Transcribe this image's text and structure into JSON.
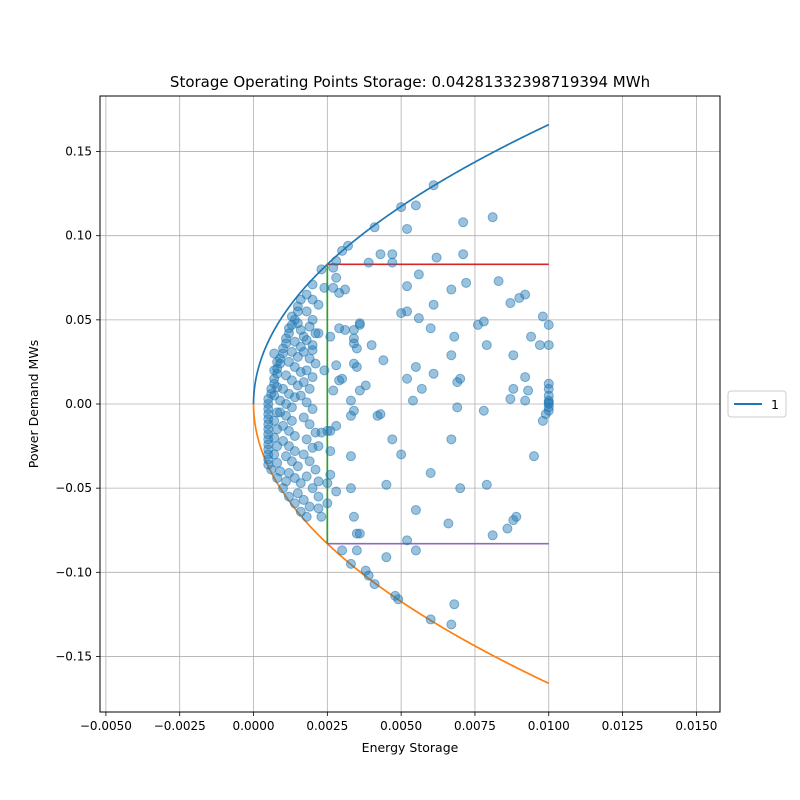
{
  "chart_data": {
    "type": "scatter",
    "title": "Storage Operating Points Storage: 0.04281332398719394 MWh",
    "xlabel": "Energy Storage",
    "ylabel": "Power Demand MWs",
    "xlim": [
      -0.0052,
      0.0158
    ],
    "ylim": [
      -0.183,
      0.183
    ],
    "xticks": [
      -0.005,
      -0.0025,
      0.0,
      0.0025,
      0.005,
      0.0075,
      0.01,
      0.0125,
      0.015
    ],
    "xtick_labels": [
      "−0.0050",
      "−0.0025",
      "0.0000",
      "0.0025",
      "0.0050",
      "0.0075",
      "0.0100",
      "0.0125",
      "0.0150"
    ],
    "yticks": [
      -0.15,
      -0.1,
      -0.05,
      0.0,
      0.05,
      0.1,
      0.15
    ],
    "ytick_labels": [
      "−0.15",
      "−0.10",
      "−0.05",
      "0.00",
      "0.05",
      "0.10",
      "0.15"
    ],
    "grid": true,
    "legend": {
      "placement": "outside-right",
      "entries": [
        {
          "name": "1",
          "color": "#1f77b4"
        }
      ]
    },
    "series": [
      {
        "kind": "curve",
        "color": "#1f77b4",
        "equation": "y = 1.66*sqrt(x)",
        "x_range": [
          0.0,
          0.01
        ]
      },
      {
        "kind": "curve",
        "color": "#ff7f0e",
        "equation": "y = -1.66*sqrt(x)",
        "x_range": [
          0.0,
          0.01
        ]
      },
      {
        "kind": "hline",
        "color": "#d62728",
        "y": 0.083,
        "x_range": [
          0.0025,
          0.01
        ]
      },
      {
        "kind": "hline",
        "color": "#9467bd",
        "y": -0.083,
        "x_range": [
          0.0025,
          0.01
        ]
      },
      {
        "kind": "vline",
        "color": "#2ca02c",
        "x": 0.0025,
        "y_range": [
          -0.083,
          0.083
        ]
      },
      {
        "kind": "scatter",
        "color": "#1f77b4",
        "alpha": 0.45,
        "points": [
          [
            0.0061,
            0.13
          ],
          [
            0.005,
            0.117
          ],
          [
            0.0055,
            0.118
          ],
          [
            0.0071,
            0.108
          ],
          [
            0.0081,
            0.111
          ],
          [
            0.0041,
            0.105
          ],
          [
            0.0052,
            0.104
          ],
          [
            0.0032,
            0.094
          ],
          [
            0.003,
            0.091
          ],
          [
            0.0043,
            0.089
          ],
          [
            0.0047,
            0.089
          ],
          [
            0.0062,
            0.087
          ],
          [
            0.0071,
            0.089
          ],
          [
            0.0028,
            0.085
          ],
          [
            0.0039,
            0.084
          ],
          [
            0.0047,
            0.084
          ],
          [
            0.0027,
            0.081
          ],
          [
            0.0023,
            0.08
          ],
          [
            0.0056,
            0.077
          ],
          [
            0.0028,
            0.075
          ],
          [
            0.0072,
            0.072
          ],
          [
            0.0083,
            0.073
          ],
          [
            0.0052,
            0.07
          ],
          [
            0.0024,
            0.069
          ],
          [
            0.0027,
            0.069
          ],
          [
            0.0031,
            0.068
          ],
          [
            0.0029,
            0.066
          ],
          [
            0.0067,
            0.068
          ],
          [
            0.009,
            0.063
          ],
          [
            0.0092,
            0.065
          ],
          [
            0.0087,
            0.06
          ],
          [
            0.0061,
            0.059
          ],
          [
            0.002,
            0.062
          ],
          [
            0.0022,
            0.059
          ],
          [
            0.0052,
            0.055
          ],
          [
            0.005,
            0.054
          ],
          [
            0.0056,
            0.051
          ],
          [
            0.0098,
            0.052
          ],
          [
            0.01,
            0.047
          ],
          [
            0.0078,
            0.049
          ],
          [
            0.0076,
            0.047
          ],
          [
            0.0036,
            0.048
          ],
          [
            0.006,
            0.045
          ],
          [
            0.0029,
            0.045
          ],
          [
            0.0031,
            0.044
          ],
          [
            0.0034,
            0.044
          ],
          [
            0.0036,
            0.047
          ],
          [
            0.0022,
            0.042
          ],
          [
            0.0026,
            0.04
          ],
          [
            0.0068,
            0.04
          ],
          [
            0.0094,
            0.04
          ],
          [
            0.0034,
            0.039
          ],
          [
            0.0034,
            0.036
          ],
          [
            0.0035,
            0.033
          ],
          [
            0.004,
            0.035
          ],
          [
            0.0079,
            0.035
          ],
          [
            0.0097,
            0.035
          ],
          [
            0.01,
            0.035
          ],
          [
            0.002,
            0.032
          ],
          [
            0.0067,
            0.029
          ],
          [
            0.0088,
            0.029
          ],
          [
            0.0044,
            0.026
          ],
          [
            0.0034,
            0.024
          ],
          [
            0.0028,
            0.023
          ],
          [
            0.0035,
            0.022
          ],
          [
            0.0024,
            0.02
          ],
          [
            0.0055,
            0.022
          ],
          [
            0.0061,
            0.018
          ],
          [
            0.0052,
            0.015
          ],
          [
            0.007,
            0.015
          ],
          [
            0.0092,
            0.016
          ],
          [
            0.0029,
            0.014
          ],
          [
            0.003,
            0.015
          ],
          [
            0.0069,
            0.013
          ],
          [
            0.0038,
            0.011
          ],
          [
            0.0057,
            0.009
          ],
          [
            0.0088,
            0.009
          ],
          [
            0.0093,
            0.008
          ],
          [
            0.01,
            0.012
          ],
          [
            0.01,
            0.009
          ],
          [
            0.0036,
            0.008
          ],
          [
            0.0027,
            0.008
          ],
          [
            0.0087,
            0.003
          ],
          [
            0.0092,
            0.002
          ],
          [
            0.0033,
            0.002
          ],
          [
            0.01,
            0.005
          ],
          [
            0.01,
            0.002
          ],
          [
            0.01,
            0.001
          ],
          [
            0.01,
            0.0
          ],
          [
            0.01,
            -0.002
          ],
          [
            0.01,
            -0.004
          ],
          [
            0.0099,
            -0.006
          ],
          [
            0.0054,
            0.002
          ],
          [
            0.0034,
            -0.004
          ],
          [
            0.0033,
            -0.007
          ],
          [
            0.0043,
            -0.006
          ],
          [
            0.0042,
            -0.007
          ],
          [
            0.0069,
            -0.002
          ],
          [
            0.0078,
            -0.004
          ],
          [
            0.0098,
            -0.01
          ],
          [
            0.0028,
            -0.013
          ],
          [
            0.0025,
            -0.016
          ],
          [
            0.0026,
            -0.016
          ],
          [
            0.0023,
            -0.017
          ],
          [
            0.0047,
            -0.021
          ],
          [
            0.0067,
            -0.021
          ],
          [
            0.0022,
            -0.025
          ],
          [
            0.0026,
            -0.028
          ],
          [
            0.005,
            -0.03
          ],
          [
            0.0033,
            -0.031
          ],
          [
            0.0095,
            -0.031
          ],
          [
            0.006,
            -0.041
          ],
          [
            0.0026,
            -0.042
          ],
          [
            0.0022,
            -0.046
          ],
          [
            0.0025,
            -0.047
          ],
          [
            0.0045,
            -0.048
          ],
          [
            0.0079,
            -0.048
          ],
          [
            0.0028,
            -0.052
          ],
          [
            0.0033,
            -0.05
          ],
          [
            0.007,
            -0.05
          ],
          [
            0.0022,
            -0.055
          ],
          [
            0.0025,
            -0.059
          ],
          [
            0.0055,
            -0.063
          ],
          [
            0.0089,
            -0.067
          ],
          [
            0.0088,
            -0.069
          ],
          [
            0.0034,
            -0.067
          ],
          [
            0.0023,
            -0.067
          ],
          [
            0.0066,
            -0.071
          ],
          [
            0.0086,
            -0.074
          ],
          [
            0.0081,
            -0.078
          ],
          [
            0.0035,
            -0.077
          ],
          [
            0.0036,
            -0.077
          ],
          [
            0.0052,
            -0.081
          ],
          [
            0.003,
            -0.087
          ],
          [
            0.0035,
            -0.087
          ],
          [
            0.0055,
            -0.087
          ],
          [
            0.0045,
            -0.091
          ],
          [
            0.0033,
            -0.095
          ],
          [
            0.0038,
            -0.099
          ],
          [
            0.0039,
            -0.102
          ],
          [
            0.0041,
            -0.107
          ],
          [
            0.0048,
            -0.114
          ],
          [
            0.0049,
            -0.116
          ],
          [
            0.0068,
            -0.119
          ],
          [
            0.006,
            -0.128
          ],
          [
            0.0067,
            -0.131
          ],
          [
            0.002,
            0.071
          ],
          [
            0.0018,
            0.065
          ],
          [
            0.0016,
            0.062
          ],
          [
            0.0015,
            0.058
          ],
          [
            0.0015,
            0.055
          ],
          [
            0.0014,
            0.05
          ],
          [
            0.0013,
            0.047
          ],
          [
            0.0012,
            0.045
          ],
          [
            0.0012,
            0.042
          ],
          [
            0.0011,
            0.039
          ],
          [
            0.0011,
            0.036
          ],
          [
            0.001,
            0.033
          ],
          [
            0.001,
            0.03
          ],
          [
            0.0009,
            0.027
          ],
          [
            0.0009,
            0.024
          ],
          [
            0.0008,
            0.021
          ],
          [
            0.0008,
            0.018
          ],
          [
            0.0007,
            0.015
          ],
          [
            0.0007,
            0.012
          ],
          [
            0.0006,
            0.009
          ],
          [
            0.0006,
            0.006
          ],
          [
            0.0005,
            0.003
          ],
          [
            0.0005,
            0.0
          ],
          [
            0.0005,
            -0.003
          ],
          [
            0.0005,
            -0.006
          ],
          [
            0.0005,
            -0.009
          ],
          [
            0.0005,
            -0.012
          ],
          [
            0.0005,
            -0.015
          ],
          [
            0.0005,
            -0.018
          ],
          [
            0.0005,
            -0.021
          ],
          [
            0.0005,
            -0.024
          ],
          [
            0.0005,
            -0.027
          ],
          [
            0.0005,
            -0.03
          ],
          [
            0.0005,
            -0.033
          ],
          [
            0.0005,
            -0.036
          ],
          [
            0.0006,
            -0.039
          ],
          [
            0.0008,
            -0.044
          ],
          [
            0.001,
            -0.05
          ],
          [
            0.0012,
            -0.055
          ],
          [
            0.0014,
            -0.059
          ],
          [
            0.0016,
            -0.064
          ],
          [
            0.0018,
            -0.067
          ],
          [
            0.0013,
            0.052
          ],
          [
            0.0015,
            0.048
          ],
          [
            0.0016,
            0.044
          ],
          [
            0.0017,
            0.04
          ],
          [
            0.0014,
            0.037
          ],
          [
            0.0016,
            0.034
          ],
          [
            0.0013,
            0.031
          ],
          [
            0.0015,
            0.028
          ],
          [
            0.0012,
            0.025
          ],
          [
            0.0014,
            0.022
          ],
          [
            0.0016,
            0.019
          ],
          [
            0.0011,
            0.017
          ],
          [
            0.0013,
            0.014
          ],
          [
            0.0015,
            0.011
          ],
          [
            0.001,
            0.009
          ],
          [
            0.0012,
            0.006
          ],
          [
            0.0014,
            0.004
          ],
          [
            0.0009,
            0.002
          ],
          [
            0.0011,
            0.0
          ],
          [
            0.0013,
            -0.002
          ],
          [
            0.0009,
            -0.005
          ],
          [
            0.0011,
            -0.007
          ],
          [
            0.0013,
            -0.01
          ],
          [
            0.001,
            -0.013
          ],
          [
            0.0012,
            -0.016
          ],
          [
            0.0014,
            -0.019
          ],
          [
            0.001,
            -0.022
          ],
          [
            0.0012,
            -0.025
          ],
          [
            0.0014,
            -0.028
          ],
          [
            0.0011,
            -0.031
          ],
          [
            0.0013,
            -0.034
          ],
          [
            0.0015,
            -0.037
          ],
          [
            0.0012,
            -0.041
          ],
          [
            0.0014,
            -0.044
          ],
          [
            0.0016,
            -0.047
          ],
          [
            0.0015,
            -0.053
          ],
          [
            0.0017,
            -0.057
          ],
          [
            0.0019,
            -0.061
          ],
          [
            0.0018,
            0.055
          ],
          [
            0.002,
            0.05
          ],
          [
            0.0019,
            0.046
          ],
          [
            0.0021,
            0.042
          ],
          [
            0.0018,
            0.038
          ],
          [
            0.002,
            0.035
          ],
          [
            0.0017,
            0.031
          ],
          [
            0.0019,
            0.027
          ],
          [
            0.0021,
            0.024
          ],
          [
            0.0018,
            0.02
          ],
          [
            0.002,
            0.016
          ],
          [
            0.0017,
            0.013
          ],
          [
            0.0019,
            0.009
          ],
          [
            0.0016,
            0.005
          ],
          [
            0.0018,
            0.001
          ],
          [
            0.002,
            -0.003
          ],
          [
            0.0017,
            -0.008
          ],
          [
            0.0019,
            -0.012
          ],
          [
            0.0021,
            -0.017
          ],
          [
            0.0018,
            -0.021
          ],
          [
            0.002,
            -0.026
          ],
          [
            0.0017,
            -0.03
          ],
          [
            0.0019,
            -0.034
          ],
          [
            0.0021,
            -0.039
          ],
          [
            0.0018,
            -0.043
          ],
          [
            0.002,
            -0.05
          ],
          [
            0.0022,
            -0.062
          ],
          [
            0.0007,
            0.03
          ],
          [
            0.0008,
            0.025
          ],
          [
            0.0007,
            0.02
          ],
          [
            0.0008,
            0.01
          ],
          [
            0.0007,
            0.005
          ],
          [
            0.0008,
            -0.005
          ],
          [
            0.0007,
            -0.01
          ],
          [
            0.0008,
            -0.015
          ],
          [
            0.0007,
            -0.02
          ],
          [
            0.0008,
            -0.025
          ],
          [
            0.0007,
            -0.03
          ],
          [
            0.0008,
            -0.035
          ],
          [
            0.0009,
            -0.04
          ],
          [
            0.0011,
            -0.046
          ]
        ]
      }
    ]
  }
}
